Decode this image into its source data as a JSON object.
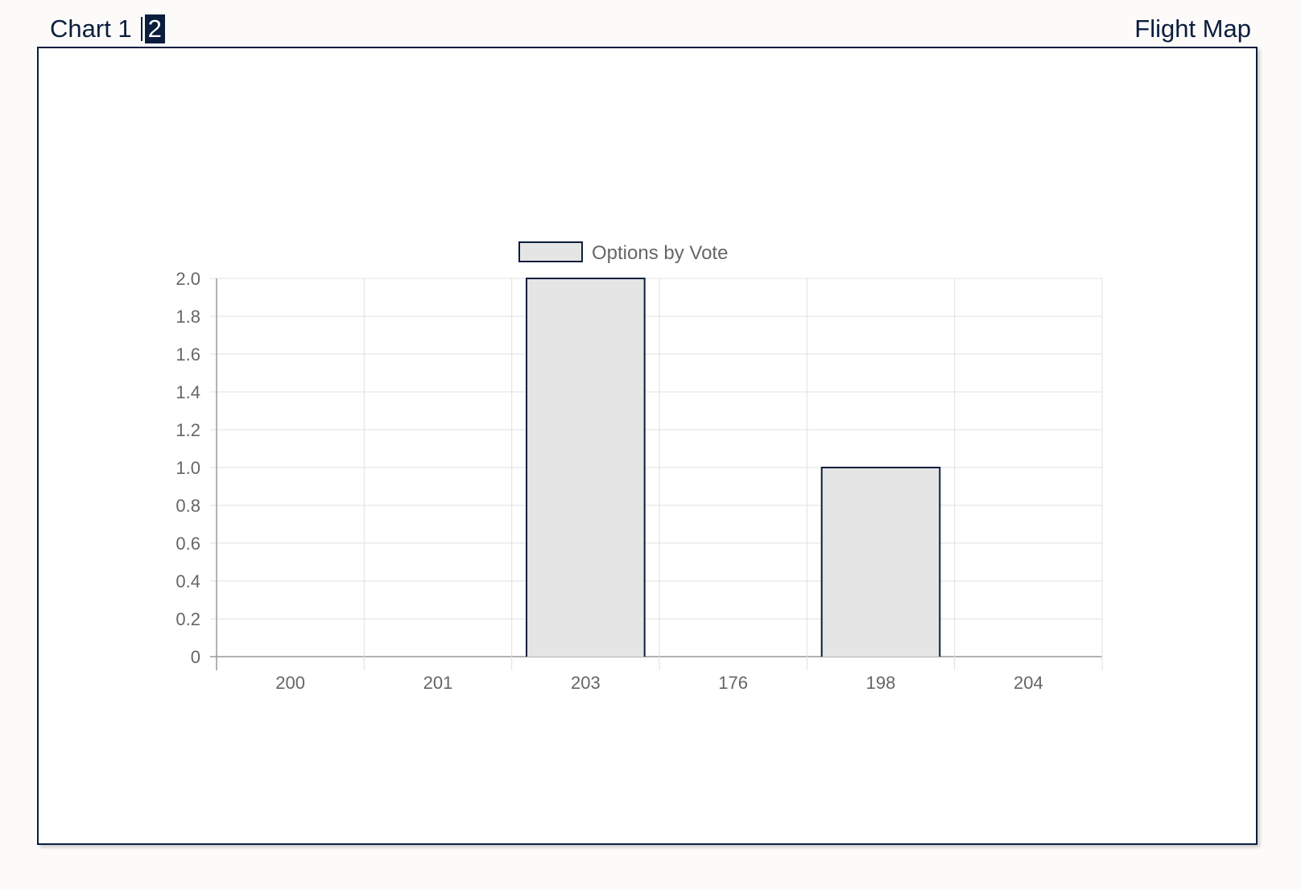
{
  "header": {
    "tabs": [
      {
        "label": "Chart 1",
        "active": false
      },
      {
        "label": "2",
        "active": true
      }
    ],
    "nav_right": "Flight Map"
  },
  "colors": {
    "navy": "#0b1d3d",
    "bar_fill": "#e5e5e5",
    "grid": "#e0e0e0",
    "axis_text": "#666666"
  },
  "chart_data": {
    "type": "bar",
    "categories": [
      "200",
      "201",
      "203",
      "176",
      "198",
      "204"
    ],
    "series": [
      {
        "name": "Options by Vote",
        "values": [
          0,
          0,
          2,
          0,
          1,
          0
        ]
      }
    ],
    "ylim": [
      0,
      2.0
    ],
    "yticks": [
      "0",
      "0.2",
      "0.4",
      "0.6",
      "0.8",
      "1.0",
      "1.2",
      "1.4",
      "1.6",
      "1.8",
      "2.0"
    ],
    "legend_position": "top-center",
    "grid": true
  }
}
